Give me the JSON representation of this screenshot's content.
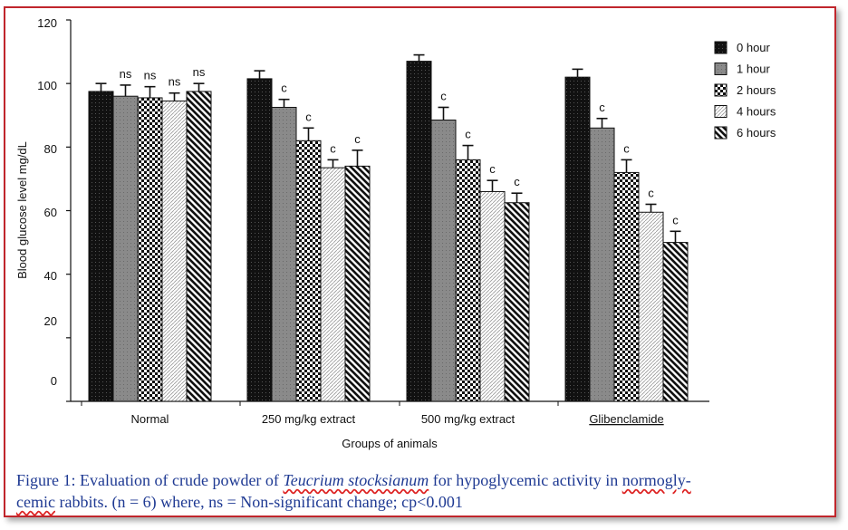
{
  "chart_data": {
    "type": "bar",
    "ylabel": "Blood glucose level  mg/dL",
    "xlabel": "Groups of animals",
    "ylim": [
      0,
      120
    ],
    "yticks": [
      0,
      20,
      40,
      60,
      80,
      100,
      120
    ],
    "categories": [
      "Normal",
      "250 mg/kg extract",
      "500 mg/kg extract",
      "Glibenclamide"
    ],
    "series": [
      {
        "name": "0 hour",
        "pattern": "dots-dark",
        "values": [
          97.5,
          101.5,
          107,
          102
        ],
        "errors": [
          2.5,
          2.5,
          2,
          2.5
        ],
        "labels": [
          "",
          "",
          "",
          ""
        ]
      },
      {
        "name": "1 hour",
        "pattern": "gray-dots",
        "values": [
          96,
          92.5,
          88.5,
          86
        ],
        "errors": [
          3.5,
          2.5,
          4,
          3
        ],
        "labels": [
          "ns",
          "c",
          "c",
          "c"
        ]
      },
      {
        "name": "2 hours",
        "pattern": "checker",
        "values": [
          95.5,
          82,
          76,
          72
        ],
        "errors": [
          3.5,
          4,
          4.5,
          4
        ],
        "labels": [
          "ns",
          "c",
          "c",
          "c"
        ]
      },
      {
        "name": "4 hours",
        "pattern": "hatch-light",
        "values": [
          94.5,
          73.5,
          66,
          59.5
        ],
        "errors": [
          2.5,
          2.5,
          3.5,
          2.5
        ],
        "labels": [
          "ns",
          "c",
          "c",
          "c"
        ]
      },
      {
        "name": "6 hours",
        "pattern": "hatch-dark",
        "values": [
          97.5,
          74,
          62.5,
          50
        ],
        "errors": [
          2.5,
          5,
          3,
          3.5
        ],
        "labels": [
          "ns",
          "c",
          "c",
          "c"
        ]
      }
    ],
    "legend_position": "top-right",
    "grid": false
  },
  "caption": {
    "part1": "Figure 1: Evaluation of crude powder of ",
    "species": "Teucrium stocksianum",
    "part2": " for hypoglycemic activity in ",
    "normo1": "normogly-",
    "normo2": "cemic",
    "part3": " rabbits. (n = 6) where, ns = Non-significant change;  cp<0.001"
  },
  "colors": {
    "frame": "#c0262c",
    "caption": "#1f3a93",
    "bar_dark": "#111111",
    "bar_gray": "#8a8a8a"
  }
}
